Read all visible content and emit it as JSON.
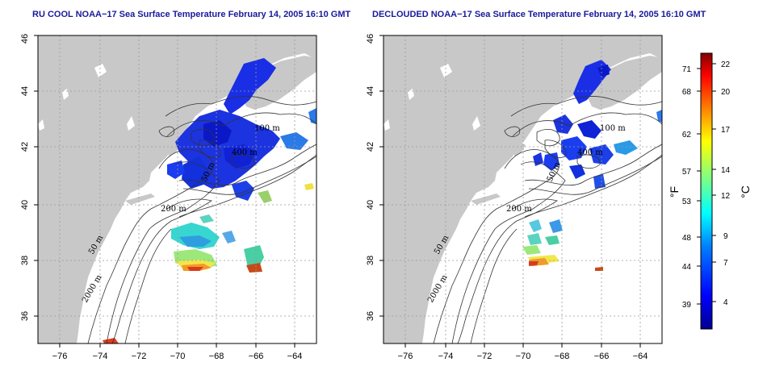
{
  "panels": [
    {
      "title": "RU COOL NOAA−17 Sea Surface Temperature February 14, 2005 16:10 GMT",
      "contour_labels": [
        "100 m",
        "400 m",
        "50 m",
        "200 m",
        "50 m",
        "2000 m"
      ],
      "variant": "raw"
    },
    {
      "title": "DECLOUDED NOAA−17 Sea Surface Temperature February 14, 2005 16:10 GMT",
      "contour_labels": [
        "100 m",
        "400 m",
        "50 m",
        "200 m",
        "50 m",
        "2000 m"
      ],
      "variant": "declouded"
    }
  ],
  "axes": {
    "x_ticks": [
      "−76",
      "−74",
      "−72",
      "−70",
      "−68",
      "−66",
      "−64"
    ],
    "y_ticks": [
      "36",
      "38",
      "40",
      "42",
      "44",
      "46"
    ]
  },
  "colorbar": {
    "fahrenheit_ticks": [
      "71",
      "68",
      "62",
      "57",
      "53",
      "48",
      "44",
      "39"
    ],
    "celsius_ticks": [
      "22",
      "20",
      "17",
      "14",
      "12",
      "9",
      "7",
      "4"
    ],
    "unit_f": "°F",
    "unit_c": "°C"
  },
  "colors": {
    "land": "#c8c8c8",
    "ocean": "#ffffff",
    "title": "#1a1a9c"
  }
}
